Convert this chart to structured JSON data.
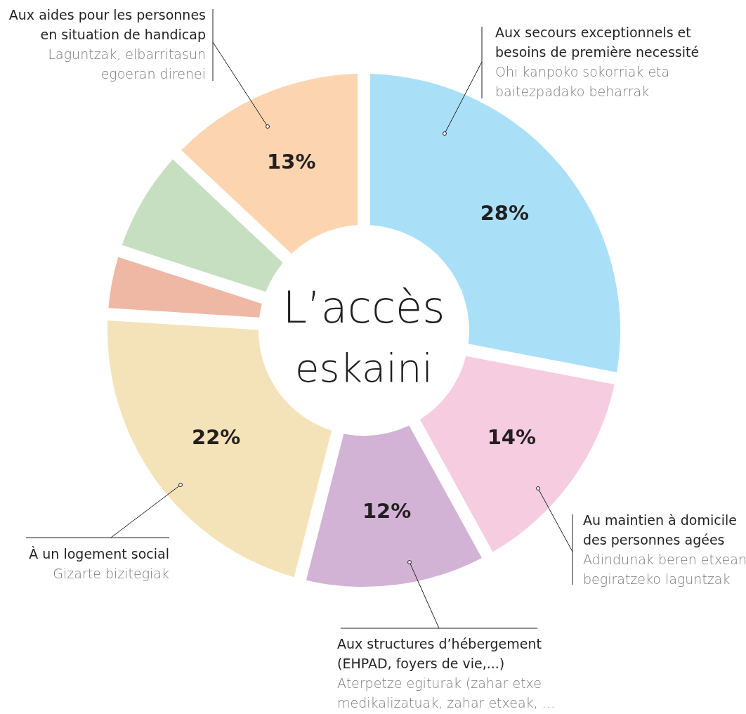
{
  "chart_data": {
    "type": "donut",
    "categories": [
      "Aux secours exceptionnels et besoins de première necessité",
      "Au maintien à domicile des personnes agées",
      "Aux structures d’hébergement (EHPAD, foyers de vie,...)",
      "À un logement social",
      null,
      null,
      "Aux aides pour les personnes en situation de handicap"
    ],
    "values": [
      28,
      14,
      12,
      22,
      4,
      7,
      13
    ],
    "colors": [
      "#aadff8",
      "#f6cce0",
      "#d3b3d5",
      "#f4e3b8",
      "#efb8a5",
      "#c5dfc0",
      "#fcd5b0"
    ],
    "value_labels": [
      "28%",
      "14%",
      "12%",
      "22%",
      null,
      null,
      "13%"
    ],
    "annotations": [
      "L’accès",
      "eskaini",
      "Ohi kanpoko sokorriak eta baitezpadako beharrak",
      "Adindunak beren etxean begiratzeko laguntzak",
      "Aterpetze egiturak (zahar etxe medikalizatuak, zahar etxeak, …",
      "Gizarte bizitegiak",
      "Laguntzak, elbarritasun egoeran direnei"
    ]
  }
}
